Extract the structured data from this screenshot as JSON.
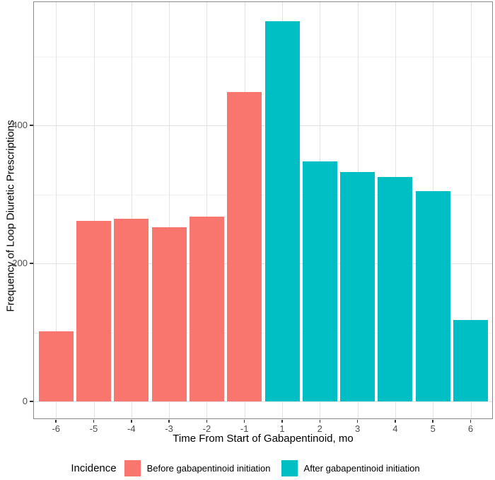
{
  "chart_data": {
    "type": "bar",
    "title": "",
    "xlabel": "Time From Start of Gabapentinoid, mo",
    "ylabel": "Frequency of Loop Diuretic Prescriptions",
    "categories": [
      "-6",
      "-5",
      "-4",
      "-3",
      "-2",
      "-1",
      "1",
      "2",
      "3",
      "4",
      "5",
      "6"
    ],
    "values": [
      102,
      262,
      265,
      252,
      268,
      448,
      551,
      348,
      332,
      325,
      305,
      118
    ],
    "groups": [
      "before",
      "before",
      "before",
      "before",
      "before",
      "before",
      "after",
      "after",
      "after",
      "after",
      "after",
      "after"
    ],
    "yticks": [
      0,
      200,
      400
    ],
    "ytick_labels": [
      "0",
      "200",
      "400"
    ],
    "minor_gridlines": [
      100,
      300,
      500
    ],
    "ylim": [
      0,
      580
    ],
    "grid": true,
    "legend_position": "bottom"
  },
  "legend": {
    "title": "Incidence",
    "items": [
      {
        "key": "before",
        "label": "Before gabapentinoid initiation",
        "color": "#F8766D"
      },
      {
        "key": "after",
        "label": "After gabapentinoid initiation",
        "color": "#00BFC4"
      }
    ]
  },
  "colors": {
    "before_bar": "#F8766D",
    "after_bar": "#00BFC4",
    "panel_border": "#8a8a8a",
    "grid_major": "#e3e3e3",
    "grid_minor": "#f1f1f1",
    "tick_text": "#4d4d4d"
  }
}
